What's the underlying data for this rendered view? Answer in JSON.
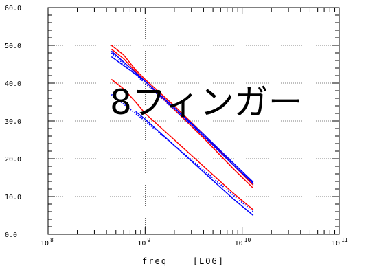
{
  "chart_data": {
    "type": "line",
    "title": "",
    "annotation": "8フィンガー",
    "xlabel": "freq    [LOG]",
    "ylabel": "",
    "xscale": "log",
    "xlim": [
      100000000,
      100000000000
    ],
    "ylim": [
      0,
      60
    ],
    "grid": true,
    "yticks": [
      "0.0",
      "10.0",
      "20.0",
      "30.0",
      "40.0",
      "50.0",
      "60.0"
    ],
    "xticks": [
      {
        "base": "10",
        "exp": "8"
      },
      {
        "base": "10",
        "exp": "9"
      },
      {
        "base": "10",
        "exp": "10"
      },
      {
        "base": "10",
        "exp": "11"
      }
    ],
    "series": [
      {
        "color": "#ff0000",
        "style": "solid",
        "x": [
          450000000,
          600000000,
          800000000,
          1000000000,
          2000000000,
          4000000000,
          8000000000,
          13000000000
        ],
        "y": [
          50.0,
          47.5,
          43.5,
          41.0,
          34.0,
          26.5,
          18.5,
          13.0
        ]
      },
      {
        "color": "#ff0000",
        "style": "solid",
        "x": [
          450000000,
          600000000,
          800000000,
          1000000000,
          2000000000,
          4000000000,
          8000000000,
          13000000000
        ],
        "y": [
          49.0,
          46.5,
          43.0,
          40.5,
          33.0,
          25.5,
          17.5,
          12.2
        ]
      },
      {
        "color": "#0000ff",
        "style": "solid",
        "x": [
          450000000,
          1000000000,
          2000000000,
          4000000000,
          8000000000,
          13000000000
        ],
        "y": [
          48.5,
          40.5,
          33.5,
          26.5,
          19.0,
          13.8
        ]
      },
      {
        "color": "#0000ff",
        "style": "dotted",
        "x": [
          450000000,
          1000000000,
          2000000000,
          4000000000,
          8000000000,
          13000000000
        ],
        "y": [
          48.0,
          40.0,
          33.0,
          26.0,
          18.5,
          13.3
        ]
      },
      {
        "color": "#0000ff",
        "style": "solid",
        "x": [
          450000000,
          1000000000,
          2000000000,
          4000000000,
          8000000000,
          13000000000
        ],
        "y": [
          47.0,
          40.5,
          33.5,
          26.0,
          18.5,
          13.5
        ]
      },
      {
        "color": "#ff0000",
        "style": "solid",
        "x": [
          450000000,
          600000000,
          800000000,
          1000000000,
          2000000000,
          4000000000,
          8000000000,
          13000000000
        ],
        "y": [
          41.0,
          38.5,
          35.0,
          32.0,
          25.0,
          18.0,
          11.0,
          6.5
        ]
      },
      {
        "color": "#0000ff",
        "style": "dotted",
        "x": [
          450000000,
          1000000000,
          2000000000,
          4000000000,
          8000000000,
          13000000000
        ],
        "y": [
          37.0,
          30.0,
          23.5,
          17.0,
          10.5,
          6.0
        ]
      },
      {
        "color": "#0000ff",
        "style": "solid",
        "x": [
          800000000,
          1000000000,
          2000000000,
          4000000000,
          8000000000,
          13000000000
        ],
        "y": [
          32.5,
          30.5,
          23.5,
          16.5,
          9.5,
          5.0
        ]
      }
    ]
  }
}
